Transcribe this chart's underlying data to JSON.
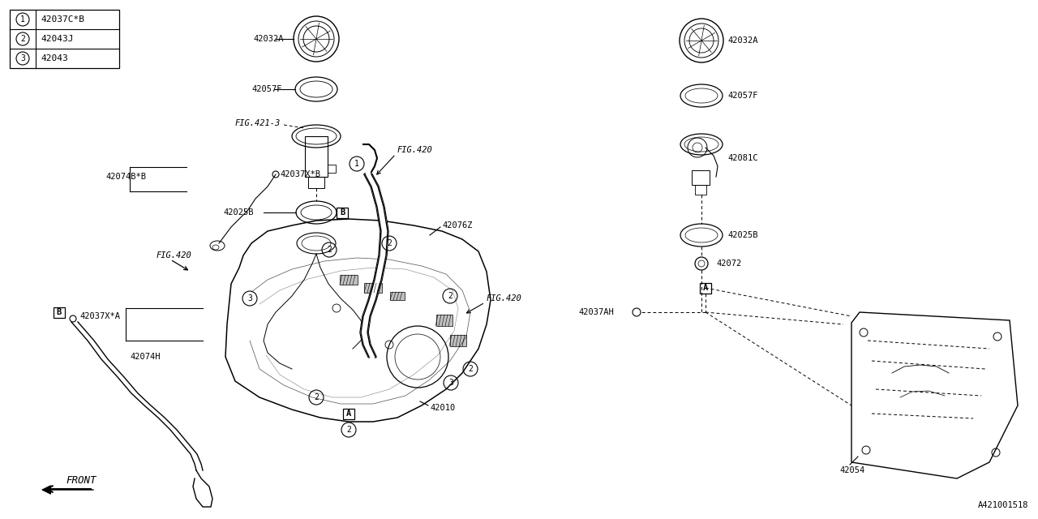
{
  "bg_color": "#ffffff",
  "line_color": "#000000",
  "diagram_id": "A421001518",
  "legend_items": [
    {
      "num": "1",
      "code": "42037C*B"
    },
    {
      "num": "2",
      "code": "42043J"
    },
    {
      "num": "3",
      "code": "42043"
    }
  ]
}
